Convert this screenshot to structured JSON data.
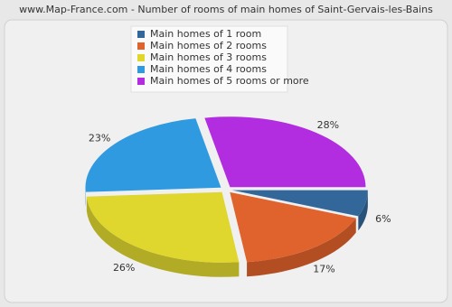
{
  "chart_data": {
    "type": "pie",
    "title": "www.Map-France.com - Number of rooms of main homes of Saint-Gervais-les-Bains",
    "categories": [
      "Main homes of 1 room",
      "Main homes of 2 rooms",
      "Main homes of 3 rooms",
      "Main homes of 4 rooms",
      "Main homes of 5 rooms or more"
    ],
    "values": [
      6,
      17,
      26,
      23,
      28
    ],
    "value_labels": [
      "6%",
      "17%",
      "26%",
      "23%",
      "28%"
    ],
    "colors": [
      "#336699",
      "#e0622c",
      "#dfd62e",
      "#2f9ae0",
      "#b22ce0"
    ]
  }
}
